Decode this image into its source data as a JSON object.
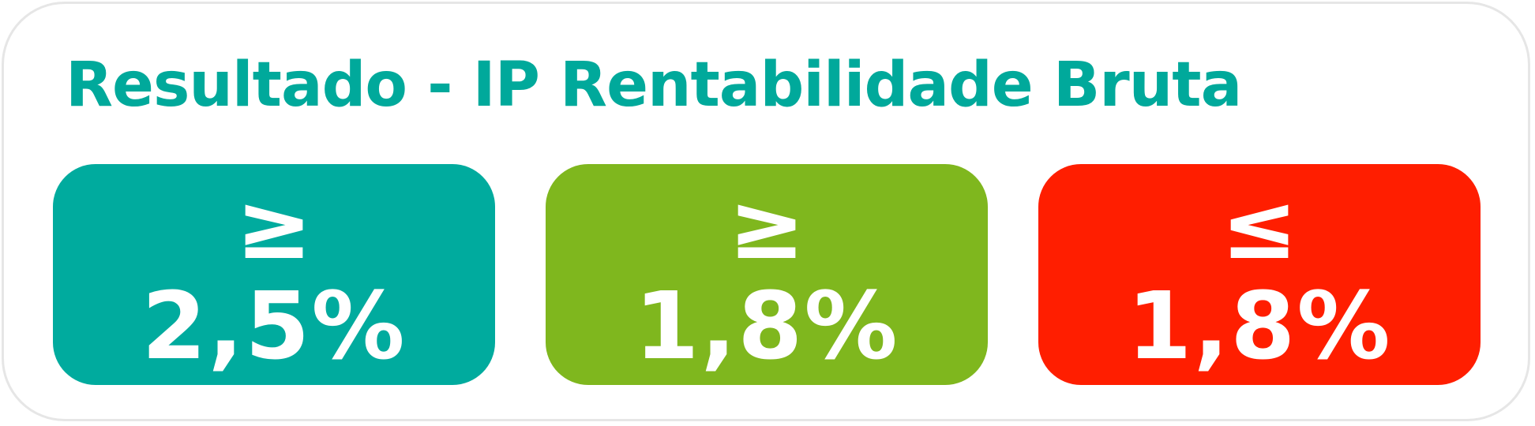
{
  "title": "Resultado - IP Rentabilidade Bruta",
  "cards": [
    {
      "symbol": "≥",
      "value": "2,5%",
      "color": "#00ab9e"
    },
    {
      "symbol": "≥",
      "value": "1,8%",
      "color": "#7fb71e"
    },
    {
      "symbol": "≤",
      "value": "1,8%",
      "color": "#ff1e00"
    }
  ]
}
